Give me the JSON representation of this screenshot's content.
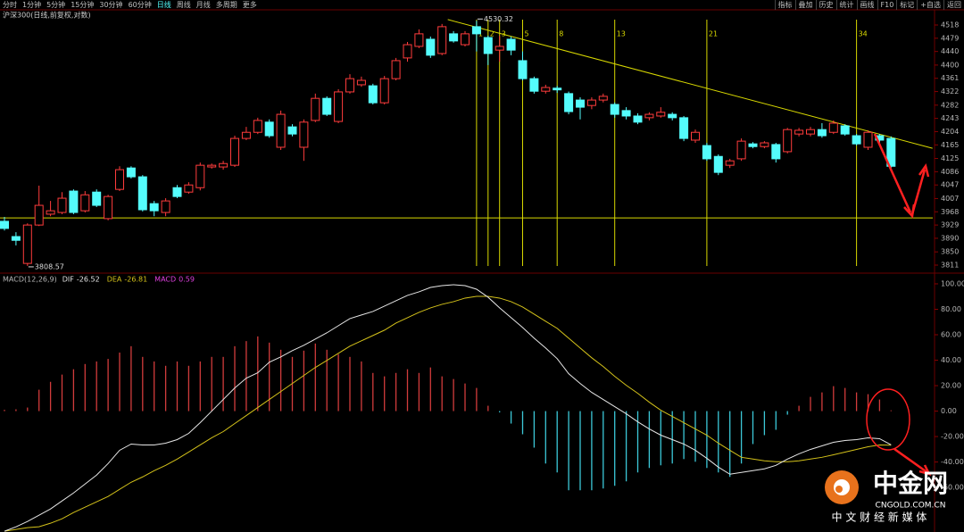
{
  "toolbar": {
    "left": [
      "分时",
      "1分钟",
      "5分钟",
      "15分钟",
      "30分钟",
      "60分钟",
      "日线",
      "周线",
      "月线",
      "多周期",
      "更多"
    ],
    "active": "日线",
    "right": [
      "指标",
      "叠加",
      "历史",
      "统计",
      "画线",
      "F10",
      "标记",
      "+自选",
      "返回"
    ]
  },
  "chart_data": [
    {
      "type": "candlestick",
      "title": "沪深300(日线,前复权,对数)",
      "up_color": "#ff3c3c",
      "down_color": "#54fcfc",
      "open": [
        3940,
        3895,
        3816,
        3929,
        3961,
        3966,
        4029,
        3971,
        4026,
        3948,
        4034,
        4097,
        4071,
        3992,
        3966,
        4039,
        4026,
        4039,
        4100,
        4100,
        4105,
        4184,
        4202,
        4232,
        4158,
        4218,
        4158,
        4237,
        4302,
        4234,
        4321,
        4342,
        4339,
        4289,
        4360,
        4421,
        4455,
        4476,
        4434,
        4492,
        4460,
        4513,
        4481,
        4444,
        4476,
        4413,
        4360,
        4323,
        4332,
        4316,
        4297,
        4281,
        4297,
        4284,
        4266,
        4250,
        4245,
        4250,
        4255,
        4245,
        4179,
        4163,
        4131,
        4105,
        4124,
        4168,
        4160,
        4166,
        4145,
        4197,
        4197,
        4210,
        4202,
        4221,
        4192,
        4158,
        4192,
        4184
      ],
      "high": [
        3953,
        3908,
        3934,
        4045,
        4000,
        4026,
        4034,
        4029,
        4034,
        4018,
        4102,
        4102,
        4076,
        4000,
        4008,
        4047,
        4055,
        4113,
        4110,
        4118,
        4192,
        4218,
        4245,
        4240,
        4266,
        4226,
        4240,
        4316,
        4308,
        4329,
        4373,
        4366,
        4345,
        4368,
        4421,
        4468,
        4505,
        4484,
        4521,
        4500,
        4500,
        4530.32,
        4487,
        4486,
        4484,
        4440,
        4366,
        4342,
        4339,
        4322,
        4305,
        4305,
        4316,
        4290,
        4276,
        4258,
        4261,
        4276,
        4261,
        4250,
        4210,
        4171,
        4137,
        4124,
        4184,
        4173,
        4176,
        4171,
        4215,
        4215,
        4218,
        4229,
        4237,
        4226,
        4197,
        4208,
        4197,
        4190
      ],
      "low": [
        3913,
        3869,
        3808.57,
        3926,
        3955,
        3961,
        3961,
        3966,
        3982,
        3943,
        4029,
        4066,
        3969,
        3955,
        3955,
        4008,
        4021,
        4031,
        4095,
        4092,
        4100,
        4179,
        4197,
        4186,
        4150,
        4190,
        4118,
        4232,
        4250,
        4229,
        4316,
        4336,
        4284,
        4284,
        4355,
        4410,
        4450,
        4421,
        4429,
        4466,
        4455,
        4440,
        4400,
        4410,
        4429,
        4355,
        4316,
        4316,
        4318,
        4255,
        4240,
        4270,
        4290,
        4245,
        4240,
        4226,
        4237,
        4245,
        4237,
        4176,
        4171,
        4118,
        4076,
        4097,
        4118,
        4155,
        4155,
        4113,
        4140,
        4190,
        4190,
        4186,
        4197,
        4192,
        4163,
        4150,
        4171,
        4097
      ],
      "close": [
        3919,
        3884,
        3929,
        3987,
        3971,
        4008,
        3966,
        4018,
        3987,
        4013,
        4092,
        4071,
        3974,
        3971,
        4000,
        4013,
        4047,
        4105,
        4105,
        4110,
        4184,
        4202,
        4237,
        4192,
        4255,
        4197,
        4232,
        4302,
        4255,
        4321,
        4360,
        4355,
        4289,
        4360,
        4413,
        4460,
        4492,
        4429,
        4513,
        4471,
        4492,
        4492,
        4434,
        4455,
        4444,
        4360,
        4323,
        4334,
        4327,
        4263,
        4276,
        4297,
        4308,
        4255,
        4250,
        4232,
        4255,
        4261,
        4245,
        4184,
        4202,
        4124,
        4084,
        4118,
        4176,
        4160,
        4171,
        4124,
        4210,
        4208,
        4210,
        4192,
        4229,
        4197,
        4168,
        4202,
        4179,
        4102
      ],
      "ylim": [
        3790,
        4539
      ],
      "yticks": [
        4518,
        4479,
        4440,
        4400,
        4361,
        4322,
        4282,
        4243,
        4204,
        4165,
        4125,
        4086,
        4047,
        4007,
        3968,
        3929,
        3890,
        3850,
        3811
      ],
      "hline": {
        "value": 3950,
        "color": "#d8d800"
      },
      "trendline": {
        "x": [
          38.5,
          80.6
        ],
        "y": [
          4534,
          4155
        ],
        "color": "#d8d800"
      },
      "fib_lines": {
        "at": [
          41,
          42,
          43,
          45,
          48,
          53,
          61,
          74
        ],
        "labels": [
          "1",
          "2",
          "3",
          "5",
          "8",
          "13",
          "21",
          "34"
        ],
        "color": "#d8d800"
      }
    },
    {
      "type": "macd",
      "title": "MACD(12,26,9)",
      "series": [
        {
          "name": "DIF",
          "color": "#e6e6e6",
          "values": [
            -94.4,
            -90.9,
            -86.7,
            -81.8,
            -76.9,
            -70.6,
            -64.3,
            -57.3,
            -50.3,
            -41.2,
            -30.8,
            -25.9,
            -26.6,
            -26.6,
            -25.2,
            -22.4,
            -17.5,
            -9.1,
            0,
            9.1,
            18.2,
            25.9,
            30.1,
            38.4,
            42.6,
            47.5,
            51.7,
            56.6,
            61.5,
            67.1,
            72.7,
            75.5,
            78.3,
            82.5,
            86.7,
            90.9,
            93.7,
            97.2,
            98.6,
            99.3,
            98.6,
            95.8,
            89.5,
            81.1,
            73.4,
            65.7,
            57.3,
            49.6,
            41.2,
            29.4,
            21.7,
            14.7,
            9.1,
            3.5,
            -2.1,
            -8.4,
            -14,
            -18.9,
            -22.4,
            -25.9,
            -30.8,
            -37.1,
            -44,
            -49.6,
            -48.2,
            -46.8,
            -45.4,
            -42.6,
            -37.7,
            -33.6,
            -30.1,
            -27.3,
            -24.5,
            -23.1,
            -22.4,
            -21,
            -21.7,
            -26.52
          ]
        },
        {
          "name": "DEA",
          "color": "#d4c21a",
          "values": [
            -94.4,
            -93,
            -91.6,
            -90.9,
            -88.1,
            -84.6,
            -79.7,
            -75.5,
            -71.3,
            -67.1,
            -61.5,
            -55.9,
            -51.7,
            -46.8,
            -42.6,
            -37.7,
            -32.2,
            -26.6,
            -21,
            -16.1,
            -9.8,
            -3.5,
            2.8,
            9.1,
            15.4,
            21.7,
            28,
            34.3,
            39.8,
            45.4,
            51,
            55.2,
            59.4,
            63.6,
            69.2,
            73.4,
            77.6,
            81.1,
            83.9,
            86,
            88.8,
            90.2,
            90.2,
            88.8,
            86,
            81.8,
            76.2,
            70.6,
            65,
            57.3,
            49.6,
            41.9,
            35,
            27.3,
            20.3,
            14,
            7,
            0.7,
            -4.2,
            -9.1,
            -14,
            -18.9,
            -25.2,
            -30.8,
            -36.3,
            -37.7,
            -39.1,
            -39.8,
            -39.8,
            -39.1,
            -37.7,
            -36.3,
            -34.3,
            -32.2,
            -30.1,
            -28,
            -26.6,
            -26.81
          ]
        },
        {
          "name": "MACD",
          "color": "#e040e0",
          "up_color": "#d23c3c",
          "down_color": "#3cc8d8",
          "values": [
            1,
            1.4,
            2.8,
            16.8,
            23,
            28.7,
            32.9,
            37,
            39,
            41,
            46,
            51,
            42.6,
            39,
            35.6,
            39,
            35.6,
            39,
            42.6,
            42.6,
            51,
            55,
            58.7,
            53.8,
            48.2,
            42.6,
            47.5,
            53.1,
            48.2,
            44.7,
            42.6,
            39,
            30,
            27.3,
            30,
            32.9,
            30,
            34.3,
            27.3,
            25.2,
            21.7,
            18.2,
            4.2,
            -1,
            -9.8,
            -18.2,
            -28.7,
            -41.2,
            -48.2,
            -62.2,
            -62.2,
            -62.2,
            -60.8,
            -58.7,
            -55.2,
            -48.2,
            -44.7,
            -42.6,
            -41.2,
            -37.7,
            -39.8,
            -44.7,
            -48.2,
            -51.7,
            -41.2,
            -25.9,
            -18.9,
            -14.7,
            -2.8,
            4.2,
            11.2,
            14.7,
            19.6,
            18.2,
            14.7,
            13.3,
            9.1,
            0.59
          ]
        }
      ],
      "ylim": [
        -95,
        107
      ],
      "yticks": [
        {
          "value": 100,
          "label": "100.00"
        },
        {
          "value": 80,
          "label": "80.00"
        },
        {
          "value": 60,
          "label": "60.00"
        },
        {
          "value": 40,
          "label": "40.00"
        },
        {
          "value": 20,
          "label": "20.00"
        },
        {
          "value": 0,
          "label": "0.00"
        },
        {
          "value": -20,
          "label": "-20.00"
        },
        {
          "value": -40,
          "label": "-40.00"
        },
        {
          "value": -60,
          "label": "-60.00"
        }
      ]
    }
  ],
  "watermark": {
    "name": "中金网",
    "site": "CNGOLD.COM.CN",
    "slogan": "中 文 财 经 新 媒 体"
  }
}
